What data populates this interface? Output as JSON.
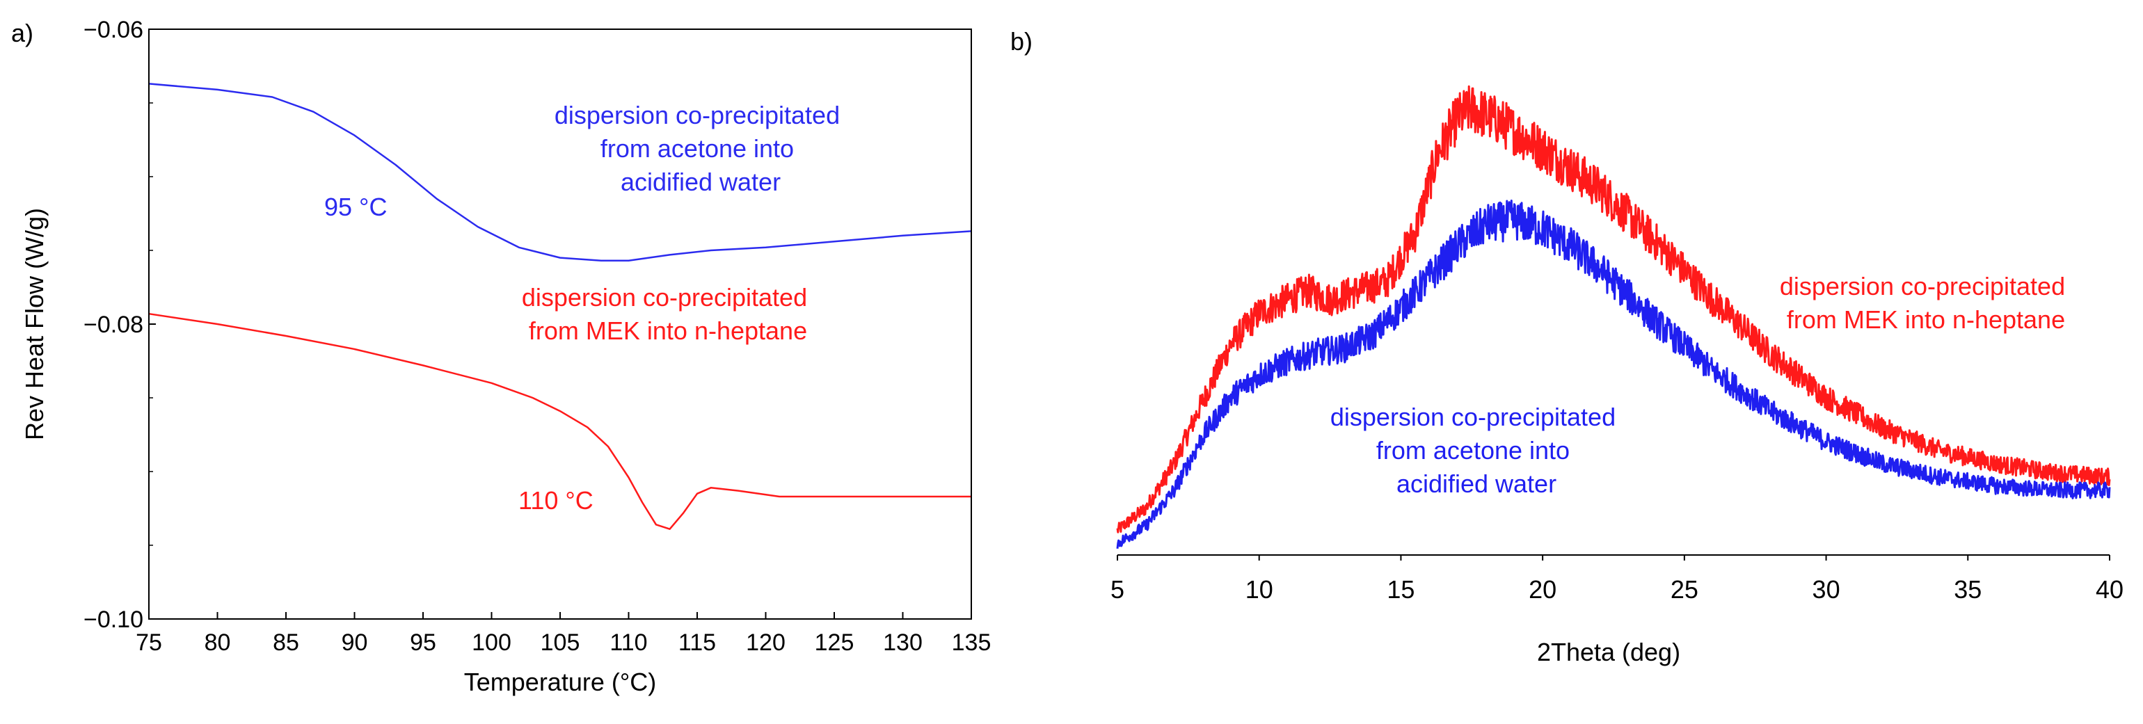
{
  "chart_data": [
    {
      "panel_label": "a)",
      "type": "line",
      "xlabel": "Temperature (°C)",
      "ylabel": "Rev Heat Flow (W/g)",
      "xlim": [
        75,
        135
      ],
      "ylim": [
        -0.1,
        -0.06
      ],
      "x_ticks": [
        75,
        80,
        85,
        90,
        95,
        100,
        105,
        110,
        115,
        120,
        125,
        130,
        135
      ],
      "x_tick_labels": [
        "75",
        "80",
        "85",
        "90",
        "95",
        "100",
        "105",
        "110",
        "115",
        "120",
        "125",
        "130",
        "135"
      ],
      "y_ticks": [
        -0.06,
        -0.08,
        -0.1
      ],
      "y_tick_labels": [
        "−0.06",
        "−0.08",
        "−0.10"
      ],
      "grid": false,
      "series": [
        {
          "name": "dispersion co-precipitated from acetone into acidified water",
          "color": "#2b2bef",
          "x": [
            75,
            80,
            84,
            87,
            90,
            93,
            96,
            99,
            102,
            105,
            108,
            110,
            113,
            116,
            120,
            125,
            130,
            135
          ],
          "y": [
            -0.0637,
            -0.0641,
            -0.0646,
            -0.0656,
            -0.0672,
            -0.0692,
            -0.0715,
            -0.0734,
            -0.0748,
            -0.0755,
            -0.0757,
            -0.0757,
            -0.0753,
            -0.075,
            -0.0748,
            -0.0744,
            -0.074,
            -0.0737
          ]
        },
        {
          "name": "dispersion co-precipitated from MEK into n-heptane",
          "color": "#ff1a1a",
          "x": [
            75,
            80,
            85,
            90,
            95,
            100,
            103,
            105,
            107,
            108.5,
            110,
            111,
            112,
            113,
            114,
            115,
            116,
            118,
            121,
            125,
            130,
            135
          ],
          "y": [
            -0.0793,
            -0.08,
            -0.0808,
            -0.0817,
            -0.0828,
            -0.084,
            -0.085,
            -0.0859,
            -0.087,
            -0.0883,
            -0.0904,
            -0.0921,
            -0.0936,
            -0.0939,
            -0.0928,
            -0.0915,
            -0.0911,
            -0.0913,
            -0.0917,
            -0.0917,
            -0.0917,
            -0.0917
          ]
        }
      ],
      "annotations": [
        {
          "id": "blue-curve-label",
          "lines": [
            "dispersion co-precipitated",
            "from acetone into",
            "acidified water"
          ],
          "color": "#2b2bef"
        },
        {
          "id": "blue-temp-label",
          "text": "95 °C",
          "color": "#2b2bef"
        },
        {
          "id": "red-curve-label",
          "lines": [
            "dispersion co-precipitated",
            "from MEK into n-heptane"
          ],
          "color": "#ff1a1a"
        },
        {
          "id": "red-temp-label",
          "text": "110 °C",
          "color": "#ff1a1a"
        }
      ]
    },
    {
      "panel_label": "b)",
      "type": "line",
      "xlabel": "2Theta (deg)",
      "ylabel": "",
      "xlim": [
        5,
        40
      ],
      "ylim": [
        0,
        100
      ],
      "x_ticks": [
        5,
        10,
        15,
        20,
        25,
        30,
        35,
        40
      ],
      "x_tick_labels": [
        "5",
        "10",
        "15",
        "20",
        "25",
        "30",
        "35",
        "40"
      ],
      "grid": false,
      "series": [
        {
          "name": "dispersion co-precipitated from MEK into n-heptane",
          "color": "#ff1a1a",
          "x": [
            5,
            6,
            7,
            8,
            9,
            10,
            11,
            11.7,
            12.5,
            13.5,
            14.5,
            15.5,
            16.3,
            17,
            17.5,
            18.5,
            20,
            22,
            24,
            26,
            28,
            30,
            32,
            34,
            36,
            38,
            40
          ],
          "y": [
            4,
            9,
            19,
            33,
            46,
            53,
            56,
            58,
            56,
            58,
            60,
            71,
            89,
            97,
            99,
            96,
            90,
            81,
            69,
            56,
            44,
            34,
            27,
            22,
            19,
            17,
            16
          ]
        },
        {
          "name": "dispersion co-precipitated from acetone into acidified water",
          "color": "#1f1ff0",
          "x": [
            5,
            6,
            7,
            8,
            9,
            10,
            11,
            12,
            13,
            14,
            15,
            16,
            17,
            18,
            19,
            20,
            21,
            22,
            24,
            26,
            28,
            30,
            32,
            34,
            36,
            38,
            40
          ],
          "y": [
            1,
            5,
            13,
            25,
            34,
            39,
            42,
            44,
            45,
            48,
            54,
            61,
            68,
            73,
            74,
            72,
            68,
            63,
            51,
            40,
            31,
            24,
            19,
            16,
            14,
            13,
            13
          ]
        }
      ],
      "annotations": [
        {
          "id": "red-curve-label",
          "lines": [
            "dispersion co-precipitated",
            "from MEK into n-heptane"
          ],
          "color": "#ff1a1a"
        },
        {
          "id": "blue-curve-label",
          "lines": [
            "dispersion co-precipitated",
            "from acetone into",
            "acidified water"
          ],
          "color": "#1f1ff0"
        }
      ]
    }
  ]
}
